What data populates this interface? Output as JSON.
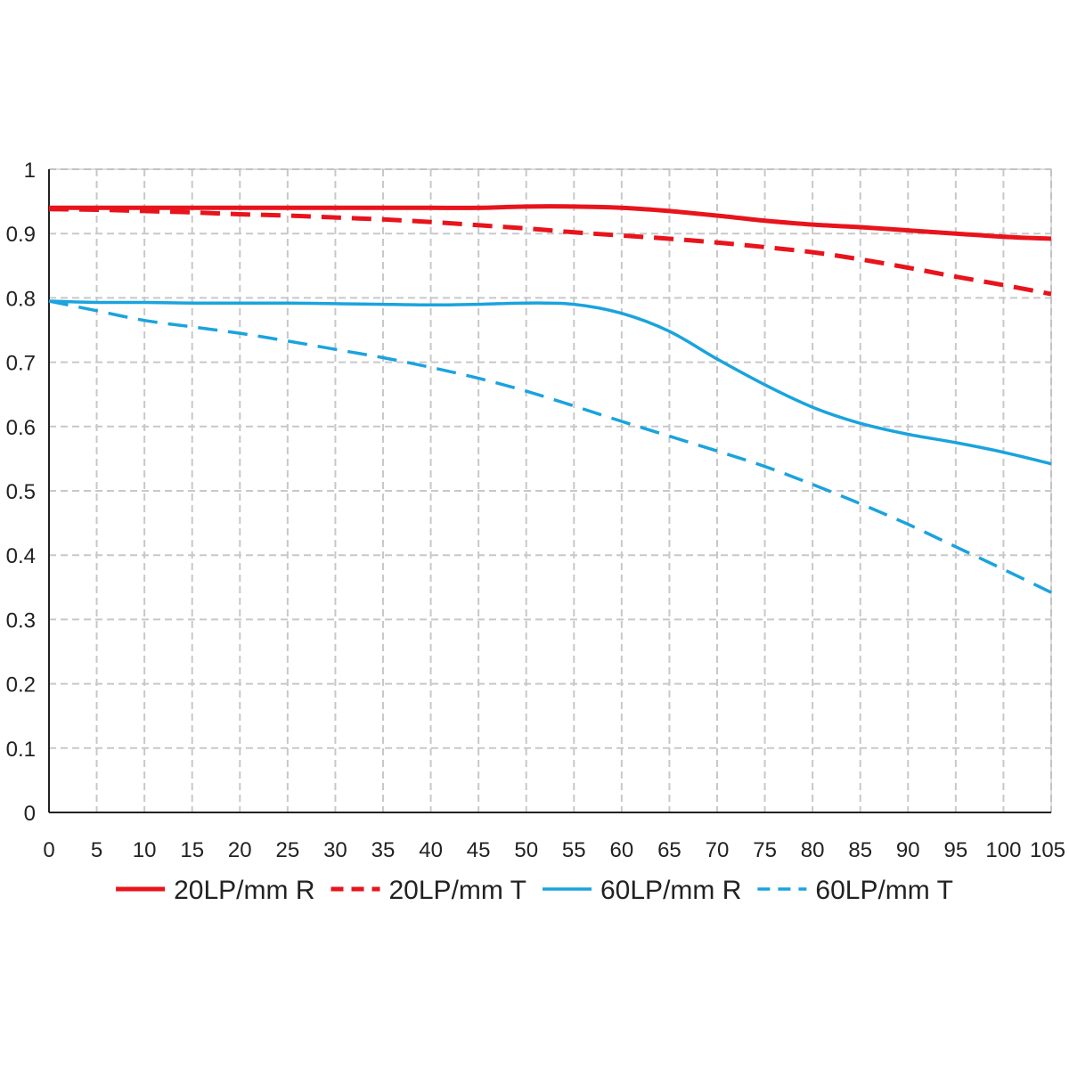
{
  "chart_data": {
    "type": "line",
    "title": "",
    "xlabel": "",
    "ylabel": "",
    "xlim": [
      0,
      105
    ],
    "ylim": [
      0,
      1
    ],
    "x_ticks": [
      "0",
      "5",
      "10",
      "15",
      "20",
      "25",
      "30",
      "35",
      "40",
      "45",
      "50",
      "55",
      "60",
      "65",
      "70",
      "75",
      "80",
      "85",
      "90",
      "95",
      "100",
      "105"
    ],
    "y_ticks": [
      "0",
      "0.1",
      "0.2",
      "0.3",
      "0.4",
      "0.5",
      "0.6",
      "0.7",
      "0.8",
      "0.9",
      "1"
    ],
    "grid": true,
    "legend_position": "bottom",
    "x": [
      0,
      5,
      10,
      15,
      20,
      25,
      30,
      35,
      40,
      45,
      50,
      55,
      60,
      65,
      70,
      75,
      80,
      85,
      90,
      95,
      100,
      105
    ],
    "series": [
      {
        "name": "20LP/mm R",
        "color": "#e8141c",
        "style": "solid",
        "values": [
          0.94,
          0.94,
          0.94,
          0.94,
          0.94,
          0.94,
          0.94,
          0.94,
          0.94,
          0.94,
          0.942,
          0.942,
          0.94,
          0.935,
          0.928,
          0.92,
          0.914,
          0.91,
          0.905,
          0.9,
          0.895,
          0.892
        ]
      },
      {
        "name": "20LP/mm T",
        "color": "#e8141c",
        "style": "dashed",
        "values": [
          0.938,
          0.937,
          0.935,
          0.933,
          0.93,
          0.928,
          0.925,
          0.922,
          0.918,
          0.913,
          0.908,
          0.902,
          0.897,
          0.892,
          0.886,
          0.879,
          0.871,
          0.86,
          0.847,
          0.833,
          0.82,
          0.806
        ]
      },
      {
        "name": "60LP/mm R",
        "color": "#1aa3de",
        "style": "solid",
        "values": [
          0.795,
          0.793,
          0.793,
          0.792,
          0.792,
          0.792,
          0.791,
          0.79,
          0.789,
          0.79,
          0.792,
          0.79,
          0.776,
          0.748,
          0.705,
          0.665,
          0.63,
          0.605,
          0.588,
          0.575,
          0.56,
          0.542
        ]
      },
      {
        "name": "60LP/mm T",
        "color": "#1aa3de",
        "style": "dashed",
        "values": [
          0.795,
          0.78,
          0.765,
          0.755,
          0.745,
          0.733,
          0.72,
          0.707,
          0.692,
          0.675,
          0.655,
          0.632,
          0.608,
          0.585,
          0.562,
          0.538,
          0.51,
          0.48,
          0.448,
          0.413,
          0.378,
          0.342
        ]
      }
    ]
  }
}
